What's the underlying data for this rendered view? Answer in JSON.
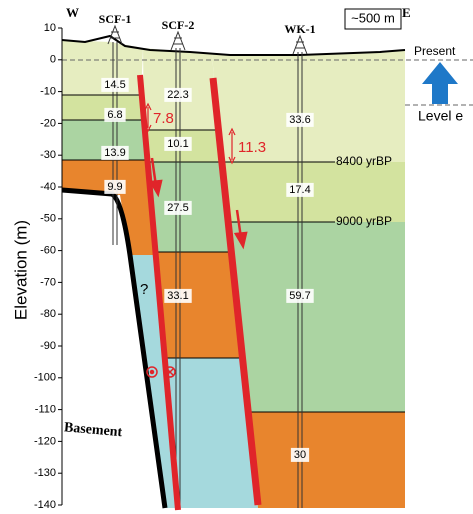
{
  "axis": {
    "label": "Elevation (m)",
    "range": [
      -140,
      10
    ],
    "ticks": [
      10,
      0,
      -10,
      -20,
      -30,
      -40,
      -50,
      -60,
      -70,
      -80,
      -90,
      -100,
      -110,
      -120,
      -130,
      -140
    ]
  },
  "directions": {
    "west": "W",
    "east": "E"
  },
  "scale_bar": "~500 m",
  "wells": [
    {
      "label": "SCF-1"
    },
    {
      "label": "SCF-2"
    },
    {
      "label": "WK-1"
    }
  ],
  "thicknesses": {
    "scf1": [
      14.5,
      6.8,
      13.9,
      9.9
    ],
    "scf2": [
      22.3,
      10.1,
      27.5,
      33.1
    ],
    "wk1": [
      33.6,
      17.4,
      59.7,
      30
    ]
  },
  "offsets": [
    7.8,
    11.3
  ],
  "ages": [
    "8400 yrBP",
    "9000 yrBP"
  ],
  "sea_level": {
    "present": "Present",
    "level": "Level e"
  },
  "basement": "Basement",
  "question": "?"
}
